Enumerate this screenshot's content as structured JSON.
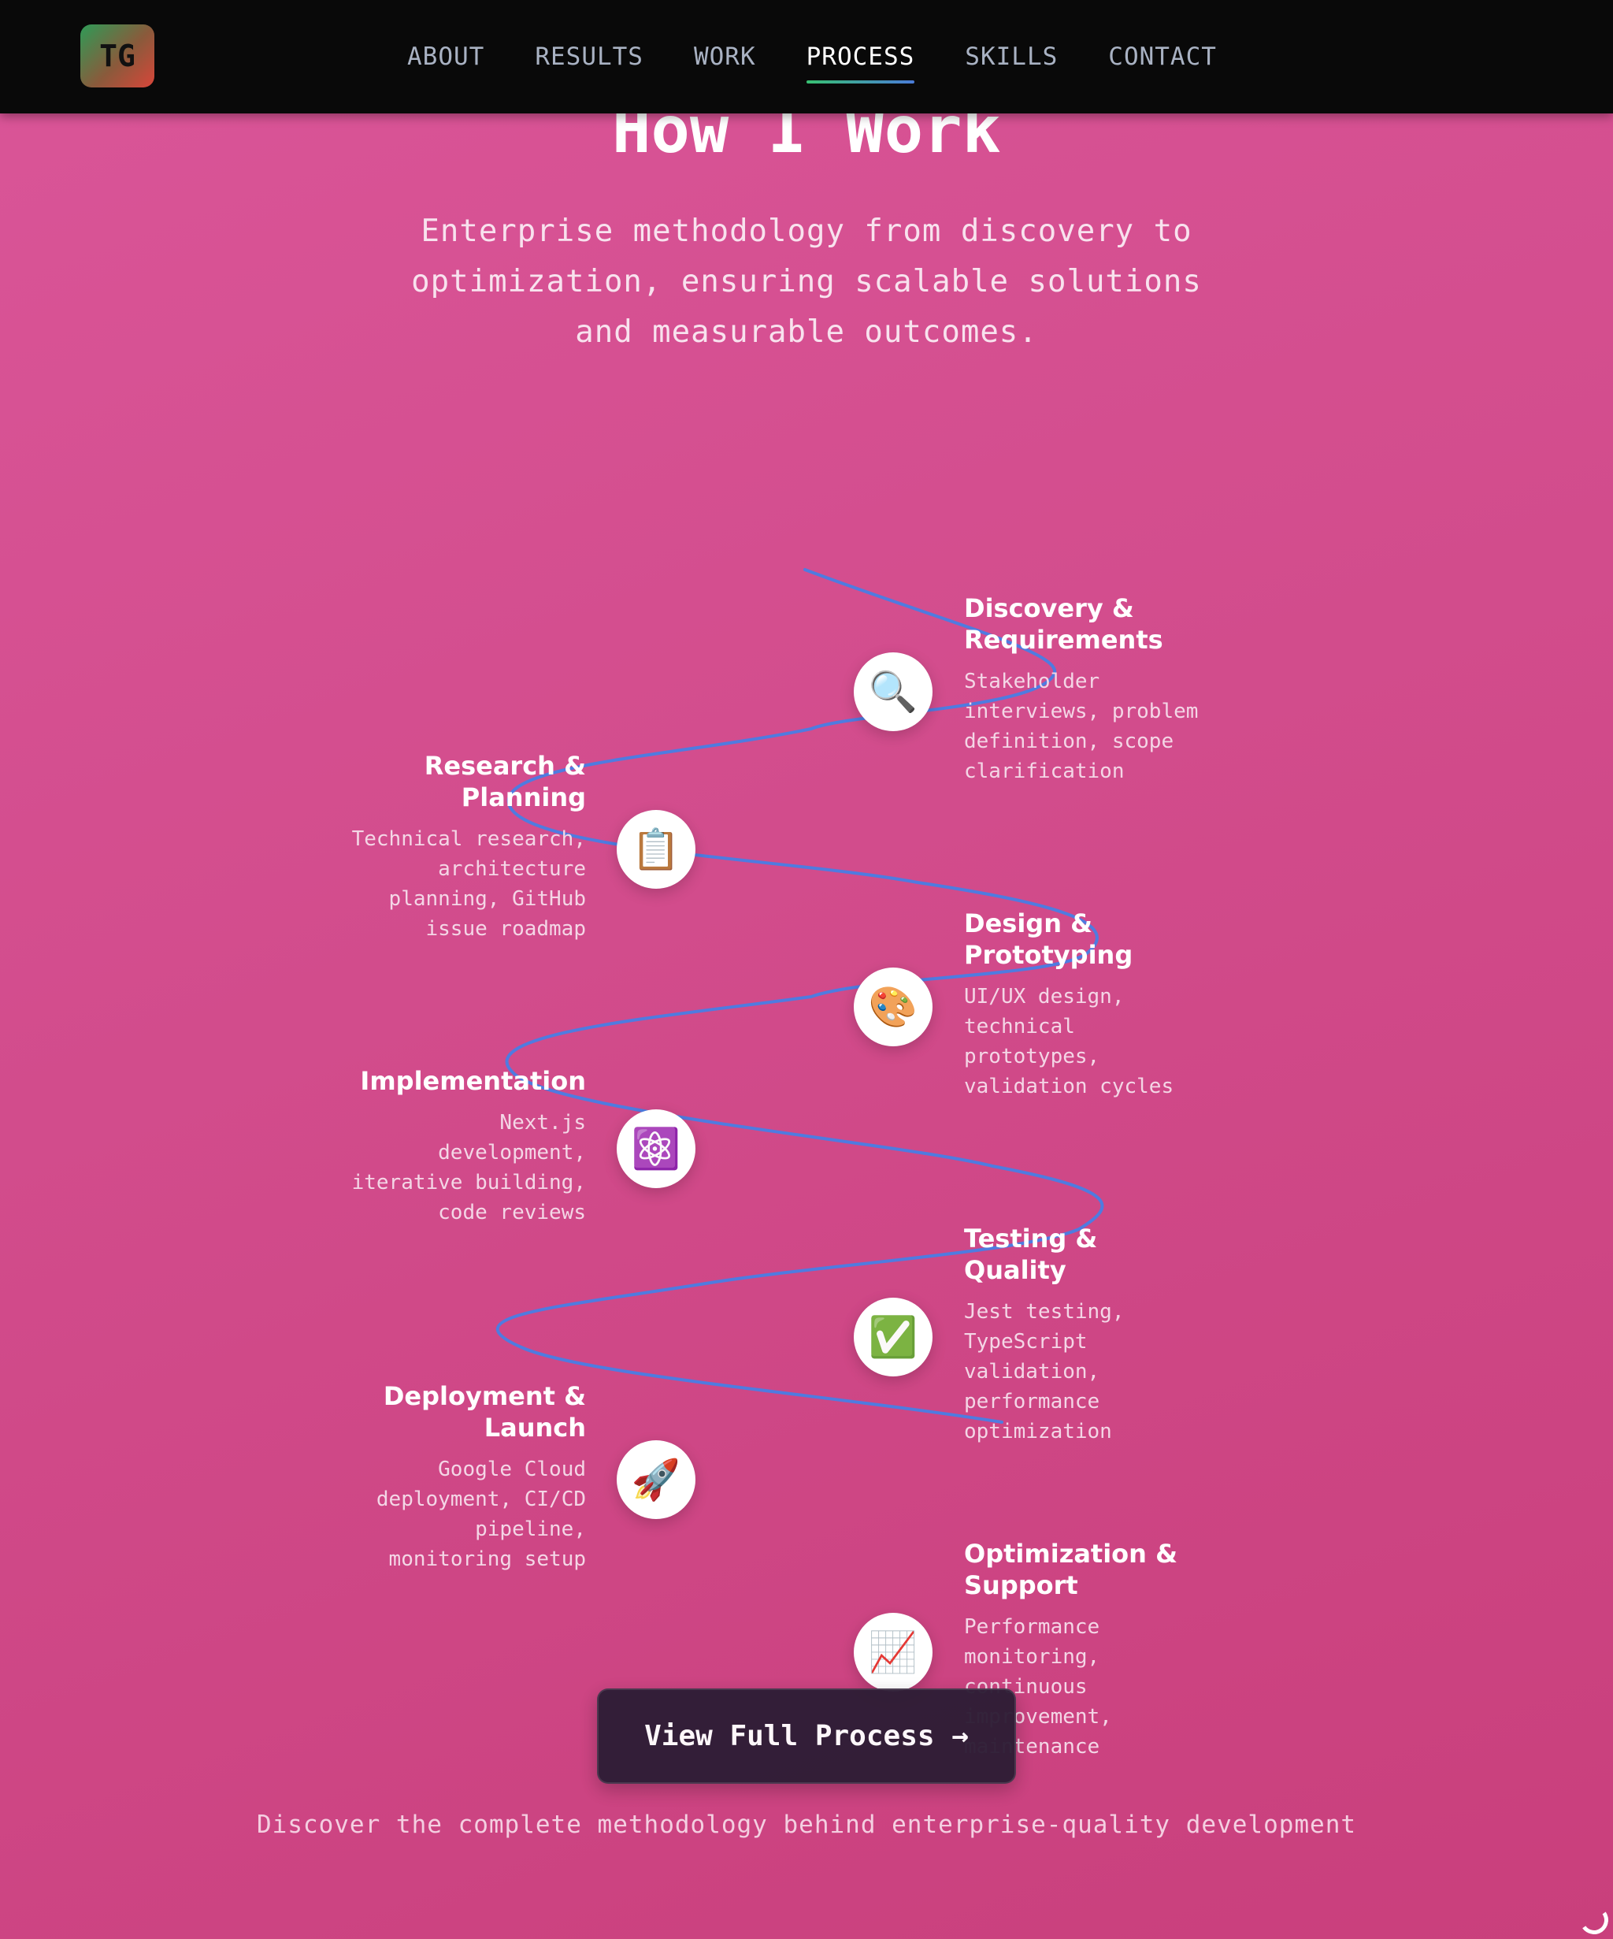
{
  "nav": {
    "logo": "TG",
    "items": [
      {
        "label": "ABOUT",
        "active": false
      },
      {
        "label": "RESULTS",
        "active": false
      },
      {
        "label": "WORK",
        "active": false
      },
      {
        "label": "PROCESS",
        "active": true
      },
      {
        "label": "SKILLS",
        "active": false
      },
      {
        "label": "CONTACT",
        "active": false
      }
    ]
  },
  "section": {
    "title": "How I Work",
    "subtitle": "Enterprise methodology from discovery to optimization, ensuring scalable solutions and measurable outcomes."
  },
  "steps": [
    {
      "title": "Discovery & Requirements",
      "description": "Stakeholder interviews, problem definition, scope clarification",
      "icon": "🔍",
      "icon_name": "magnifier-icon"
    },
    {
      "title": "Research & Planning",
      "description": "Technical research, architecture planning, GitHub issue roadmap",
      "icon": "📋",
      "icon_name": "clipboard-icon"
    },
    {
      "title": "Design & Prototyping",
      "description": "UI/UX design, technical prototypes, validation cycles",
      "icon": "🎨",
      "icon_name": "palette-icon"
    },
    {
      "title": "Implementation",
      "description": "Next.js development, iterative building, code reviews",
      "icon": "⚛️",
      "icon_name": "atom-icon"
    },
    {
      "title": "Testing & Quality",
      "description": "Jest testing, TypeScript validation, performance optimization",
      "icon": "✅",
      "icon_name": "check-icon"
    },
    {
      "title": "Deployment & Launch",
      "description": "Google Cloud deployment, CI/CD pipeline, monitoring setup",
      "icon": "🚀",
      "icon_name": "rocket-icon"
    },
    {
      "title": "Optimization & Support",
      "description": "Performance monitoring, continuous improvement, maintenance",
      "icon": "📈",
      "icon_name": "chart-up-icon"
    }
  ],
  "cta": {
    "label": "View Full Process →",
    "caption": "Discover the complete methodology behind enterprise-quality development"
  },
  "colors": {
    "curve": "#4f7be0",
    "background_start": "#da5598",
    "background_end": "#c93f7c",
    "navbar": "#090909"
  }
}
